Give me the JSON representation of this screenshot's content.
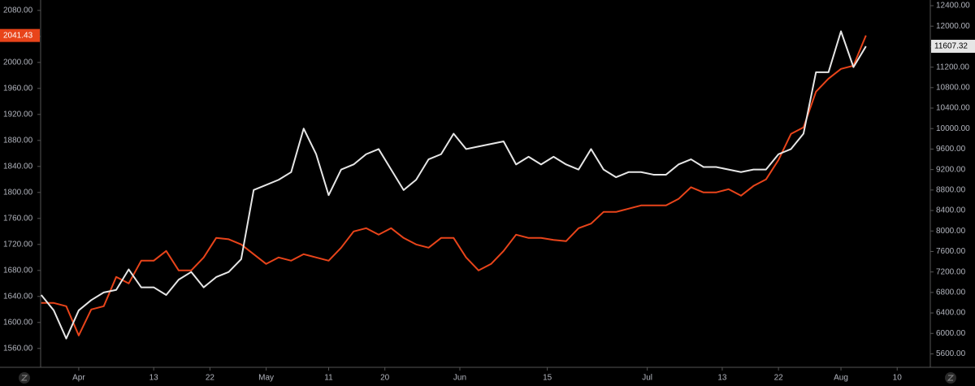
{
  "chart_data": {
    "type": "line",
    "x": [
      0,
      2,
      4,
      6,
      8,
      10,
      12,
      14,
      16,
      18,
      20,
      22,
      24,
      26,
      28,
      30,
      32,
      34,
      36,
      38,
      40,
      42,
      44,
      46,
      48,
      50,
      52,
      54,
      56,
      58,
      60,
      62,
      64,
      66,
      68,
      70,
      72,
      74,
      76,
      78,
      80,
      82,
      84,
      86,
      88,
      90,
      92,
      94,
      96,
      98,
      100,
      102,
      104,
      106,
      108,
      110,
      112,
      114,
      116,
      118,
      120,
      122,
      124,
      126,
      128,
      130,
      132
    ],
    "series": [
      {
        "color": "#e8441a",
        "axis": "y",
        "values": [
          1630,
          1630,
          1625,
          1580,
          1620,
          1625,
          1670,
          1660,
          1695,
          1695,
          1710,
          1680,
          1680,
          1700,
          1730,
          1728,
          1720,
          1705,
          1690,
          1700,
          1695,
          1705,
          1700,
          1695,
          1715,
          1740,
          1745,
          1735,
          1745,
          1730,
          1720,
          1715,
          1730,
          1730,
          1700,
          1680,
          1690,
          1710,
          1735,
          1730,
          1730,
          1727,
          1725,
          1745,
          1752,
          1770,
          1770,
          1775,
          1780,
          1780,
          1780,
          1790,
          1808,
          1800,
          1800,
          1805,
          1795,
          1810,
          1820,
          1850,
          1890,
          1900,
          1955,
          1975,
          1990,
          1995,
          2041.43
        ]
      },
      {
        "color": "#e6e6e6",
        "axis": "y2",
        "values": [
          6750,
          6450,
          5900,
          6450,
          6650,
          6800,
          6850,
          7250,
          6900,
          6900,
          6750,
          7050,
          7200,
          6900,
          7100,
          7200,
          7450,
          8800,
          8900,
          9000,
          9150,
          10000,
          9500,
          8700,
          9200,
          9300,
          9500,
          9600,
          9200,
          8800,
          9000,
          9400,
          9500,
          9900,
          9600,
          9650,
          9700,
          9750,
          9300,
          9450,
          9300,
          9450,
          9300,
          9200,
          9600,
          9200,
          9050,
          9150,
          9150,
          9100,
          9100,
          9300,
          9400,
          9250,
          9250,
          9200,
          9150,
          9200,
          9200,
          9500,
          9600,
          9900,
          11100,
          11100,
          11900,
          11200,
          11607.32
        ]
      }
    ],
    "xlim": [
      -0.1,
      142.3
    ],
    "xticks": [
      {
        "value": 6,
        "label": "Apr"
      },
      {
        "value": 18,
        "label": "13"
      },
      {
        "value": 27,
        "label": "22"
      },
      {
        "value": 36,
        "label": "May"
      },
      {
        "value": 46,
        "label": "11"
      },
      {
        "value": 55,
        "label": "20"
      },
      {
        "value": 67,
        "label": "Jun"
      },
      {
        "value": 81,
        "label": "15"
      },
      {
        "value": 97,
        "label": "Jul"
      },
      {
        "value": 109,
        "label": "13"
      },
      {
        "value": 118,
        "label": "22"
      },
      {
        "value": 128,
        "label": "Aug"
      },
      {
        "value": 137,
        "label": "10"
      }
    ],
    "ylim": [
      1531,
      2096
    ],
    "yticks": [
      {
        "value": 1560,
        "label": "1560.00"
      },
      {
        "value": 1600,
        "label": "1600.00"
      },
      {
        "value": 1640,
        "label": "1640.00"
      },
      {
        "value": 1680,
        "label": "1680.00"
      },
      {
        "value": 1720,
        "label": "1720.00"
      },
      {
        "value": 1760,
        "label": "1760.00"
      },
      {
        "value": 1800,
        "label": "1800.00"
      },
      {
        "value": 1840,
        "label": "1840.00"
      },
      {
        "value": 1880,
        "label": "1880.00"
      },
      {
        "value": 1920,
        "label": "1920.00"
      },
      {
        "value": 1960,
        "label": "1960.00"
      },
      {
        "value": 2000,
        "label": "2000.00"
      },
      {
        "value": 2040,
        "label": "2040.00"
      },
      {
        "value": 2080,
        "label": "2080.00"
      }
    ],
    "y2lim": [
      5338,
      12511
    ],
    "y2ticks": [
      {
        "value": 5600,
        "label": "5600.00"
      },
      {
        "value": 6000,
        "label": "6000.00"
      },
      {
        "value": 6400,
        "label": "6400.00"
      },
      {
        "value": 6800,
        "label": "6800.00"
      },
      {
        "value": 7200,
        "label": "7200.00"
      },
      {
        "value": 7600,
        "label": "7600.00"
      },
      {
        "value": 8000,
        "label": "8000.00"
      },
      {
        "value": 8400,
        "label": "8400.00"
      },
      {
        "value": 8800,
        "label": "8800.00"
      },
      {
        "value": 9200,
        "label": "9200.00"
      },
      {
        "value": 9600,
        "label": "9600.00"
      },
      {
        "value": 10000,
        "label": "10000.00"
      },
      {
        "value": 10400,
        "label": "10400.00"
      },
      {
        "value": 10800,
        "label": "10800.00"
      },
      {
        "value": 11200,
        "label": "11200.00"
      },
      {
        "value": 11600,
        "label": "11600.00"
      },
      {
        "value": 12000,
        "label": "12000.00"
      },
      {
        "value": 12400,
        "label": "12400.00"
      }
    ],
    "grid": false
  }
}
